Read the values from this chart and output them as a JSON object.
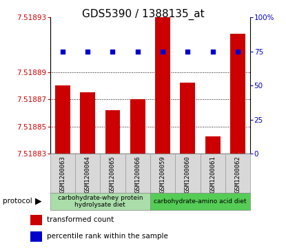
{
  "title": "GDS5390 / 1388135_at",
  "samples": [
    "GSM1200063",
    "GSM1200064",
    "GSM1200065",
    "GSM1200066",
    "GSM1200059",
    "GSM1200060",
    "GSM1200061",
    "GSM1200062"
  ],
  "red_values": [
    7.51888,
    7.518875,
    7.518862,
    7.51887,
    7.51893,
    7.518882,
    7.518843,
    7.518918
  ],
  "blue_values": [
    75,
    75,
    75,
    75,
    75,
    75,
    75,
    75
  ],
  "ylim_left": [
    7.51883,
    7.51893
  ],
  "ylim_right": [
    0,
    100
  ],
  "yticks_left": [
    7.51883,
    7.51885,
    7.51887,
    7.51889,
    7.51893
  ],
  "yticks_right": [
    0,
    25,
    50,
    75,
    100
  ],
  "ytick_labels_left": [
    "7.51883",
    "7.51885",
    "7.51887",
    "7.51889",
    "7.51893"
  ],
  "ytick_labels_right": [
    "0",
    "25",
    "50",
    "75",
    "100%"
  ],
  "left_color": "#cc0000",
  "right_color": "#0000cc",
  "bar_width": 0.6,
  "protocol_groups": [
    {
      "label": "carbohydrate-whey protein\nhydrolysate diet",
      "start": 0,
      "end": 3,
      "color": "#aaddaa"
    },
    {
      "label": "carbohydrate-amino acid diet",
      "start": 4,
      "end": 7,
      "color": "#55cc55"
    }
  ],
  "legend_items": [
    {
      "label": "transformed count",
      "color": "#cc0000"
    },
    {
      "label": "percentile rank within the sample",
      "color": "#0000cc"
    }
  ],
  "grid_color": "black",
  "sample_bg_color": "#d8d8d8",
  "plot_bg": "white",
  "title_fontsize": 11,
  "tick_fontsize": 7.5,
  "sample_fontsize": 6.5,
  "protocol_fontsize": 6.5,
  "legend_fontsize": 7.5
}
